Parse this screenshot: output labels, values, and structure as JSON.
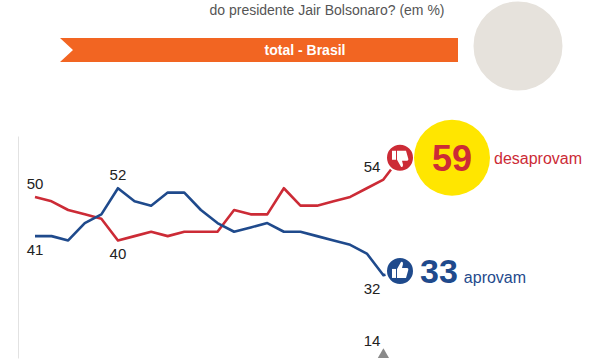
{
  "chart_data": {
    "type": "line",
    "title": "do presidente Jair Bolsonaro? (em %)",
    "subtitle": "total - Brasil",
    "categories": [
      null,
      null,
      null,
      null,
      null,
      null,
      null,
      null,
      null,
      null,
      null,
      null,
      null,
      null,
      null,
      null,
      null,
      null,
      null,
      null,
      null,
      null,
      null
    ],
    "ylim": [
      13,
      64
    ],
    "tick_labels": false,
    "data_labels": true,
    "series": [
      {
        "name": "desaprovam",
        "color": "#cc2b36",
        "values": [
          50,
          49,
          47,
          46,
          45,
          40,
          41,
          42,
          41,
          42,
          42,
          42,
          47,
          46,
          46,
          52,
          48,
          48,
          49,
          50,
          52,
          54,
          59
        ],
        "value_labels": [
          "50",
          null,
          null,
          null,
          null,
          "40",
          null,
          null,
          null,
          null,
          null,
          null,
          null,
          null,
          null,
          null,
          null,
          null,
          null,
          null,
          null,
          "54",
          "59"
        ]
      },
      {
        "name": "aprovam",
        "color": "#1f4a8c",
        "values": [
          41,
          41,
          40,
          44,
          46,
          52,
          49,
          48,
          51,
          51,
          47,
          44,
          42,
          43,
          44,
          42,
          42,
          41,
          40,
          39,
          37,
          32,
          33
        ],
        "value_labels": [
          "41",
          null,
          null,
          null,
          null,
          "52",
          null,
          null,
          null,
          null,
          null,
          null,
          null,
          null,
          null,
          null,
          null,
          null,
          null,
          null,
          null,
          "32",
          "33"
        ]
      },
      {
        "color": "#8a8a8a",
        "marker": "triangle",
        "values": [
          null,
          null,
          null,
          null,
          null,
          null,
          null,
          null,
          null,
          null,
          null,
          null,
          null,
          null,
          null,
          null,
          null,
          null,
          null,
          null,
          null,
          14,
          null
        ],
        "value_labels": [
          null,
          null,
          null,
          null,
          null,
          null,
          null,
          null,
          null,
          null,
          null,
          null,
          null,
          null,
          null,
          null,
          null,
          null,
          null,
          null,
          null,
          "14",
          null
        ]
      }
    ]
  }
}
